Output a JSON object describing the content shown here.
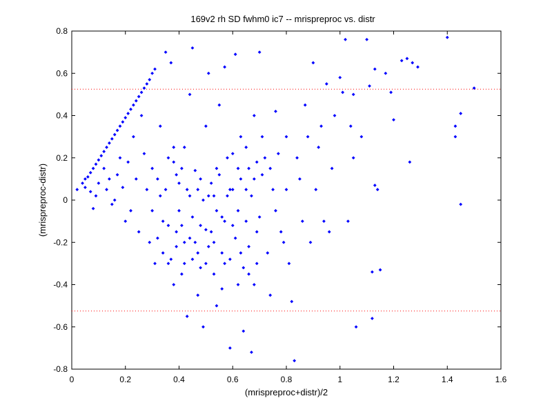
{
  "chart_data": {
    "type": "scatter",
    "title": "169v2 rh SD fwhm0 ic7 -- mrispreproc vs. distr",
    "xlabel": "(mrispreproc+distr)/2",
    "ylabel": "(mrispreproc-distr)",
    "xlim": [
      0,
      1.6
    ],
    "ylim": [
      -0.8,
      0.8
    ],
    "x_ticks": [
      "0",
      "0.2",
      "0.4",
      "0.6",
      "0.8",
      "1",
      "1.2",
      "1.4",
      "1.6"
    ],
    "y_ticks": [
      "-0.8",
      "-0.6",
      "-0.4",
      "-0.2",
      "0",
      "0.2",
      "0.4",
      "0.6",
      "0.8"
    ],
    "grid": false,
    "marker_color": "#0000ff",
    "reference_lines": [
      {
        "y": 0.525,
        "color": "#ff0000",
        "style": "dotted"
      },
      {
        "y": -0.525,
        "color": "#ff0000",
        "style": "dotted"
      }
    ],
    "series": [
      {
        "points": [
          [
            0.02,
            0.05
          ],
          [
            0.04,
            0.08
          ],
          [
            0.05,
            0.1
          ],
          [
            0.06,
            0.11
          ],
          [
            0.07,
            0.13
          ],
          [
            0.08,
            0.15
          ],
          [
            0.09,
            0.17
          ],
          [
            0.1,
            0.19
          ],
          [
            0.11,
            0.21
          ],
          [
            0.12,
            0.23
          ],
          [
            0.13,
            0.25
          ],
          [
            0.14,
            0.27
          ],
          [
            0.15,
            0.29
          ],
          [
            0.16,
            0.31
          ],
          [
            0.17,
            0.33
          ],
          [
            0.18,
            0.35
          ],
          [
            0.19,
            0.37
          ],
          [
            0.2,
            0.39
          ],
          [
            0.21,
            0.41
          ],
          [
            0.22,
            0.43
          ],
          [
            0.23,
            0.45
          ],
          [
            0.24,
            0.47
          ],
          [
            0.25,
            0.49
          ],
          [
            0.26,
            0.51
          ],
          [
            0.27,
            0.53
          ],
          [
            0.28,
            0.55
          ],
          [
            0.29,
            0.57
          ],
          [
            0.3,
            0.6
          ],
          [
            0.31,
            0.62
          ],
          [
            0.05,
            0.06
          ],
          [
            0.07,
            0.04
          ],
          [
            0.08,
            -0.04
          ],
          [
            0.09,
            0.02
          ],
          [
            0.1,
            0.08
          ],
          [
            0.12,
            0.15
          ],
          [
            0.13,
            0.05
          ],
          [
            0.14,
            0.1
          ],
          [
            0.15,
            -0.02
          ],
          [
            0.16,
            0.0
          ],
          [
            0.17,
            0.12
          ],
          [
            0.18,
            0.2
          ],
          [
            0.19,
            0.06
          ],
          [
            0.2,
            -0.1
          ],
          [
            0.21,
            0.18
          ],
          [
            0.22,
            -0.05
          ],
          [
            0.23,
            0.3
          ],
          [
            0.24,
            0.1
          ],
          [
            0.25,
            -0.15
          ],
          [
            0.26,
            0.4
          ],
          [
            0.27,
            0.22
          ],
          [
            0.28,
            0.05
          ],
          [
            0.29,
            -0.2
          ],
          [
            0.3,
            0.15
          ],
          [
            0.31,
            -0.3
          ],
          [
            0.32,
            0.1
          ],
          [
            0.33,
            0.35
          ],
          [
            0.34,
            -0.1
          ],
          [
            0.35,
            0.7
          ],
          [
            0.36,
            0.2
          ],
          [
            0.37,
            0.65
          ],
          [
            0.38,
            -0.4
          ],
          [
            0.39,
            0.12
          ],
          [
            0.4,
            -0.05
          ],
          [
            0.41,
            -0.35
          ],
          [
            0.42,
            0.25
          ],
          [
            0.43,
            -0.55
          ],
          [
            0.44,
            0.5
          ],
          [
            0.45,
            0.72
          ],
          [
            0.46,
            -0.2
          ],
          [
            0.47,
            -0.45
          ],
          [
            0.48,
            0.1
          ],
          [
            0.49,
            -0.6
          ],
          [
            0.5,
            0.35
          ],
          [
            0.51,
            0.6
          ],
          [
            0.52,
            -0.15
          ],
          [
            0.53,
            0.02
          ],
          [
            0.54,
            -0.5
          ],
          [
            0.55,
            0.45
          ],
          [
            0.56,
            -0.25
          ],
          [
            0.57,
            0.63
          ],
          [
            0.58,
            0.2
          ],
          [
            0.59,
            -0.7
          ],
          [
            0.6,
            0.05
          ],
          [
            0.61,
            0.69
          ],
          [
            0.62,
            -0.4
          ],
          [
            0.63,
            0.3
          ],
          [
            0.64,
            -0.62
          ],
          [
            0.65,
            -0.1
          ],
          [
            0.66,
            0.15
          ],
          [
            0.67,
            -0.72
          ],
          [
            0.68,
            0.4
          ],
          [
            0.69,
            -0.3
          ],
          [
            0.7,
            0.7
          ],
          [
            0.72,
            0.2
          ],
          [
            0.74,
            -0.45
          ],
          [
            0.75,
            0.05
          ],
          [
            0.76,
            0.42
          ],
          [
            0.78,
            -0.15
          ],
          [
            0.8,
            0.3
          ],
          [
            0.82,
            -0.48
          ],
          [
            0.83,
            -0.76
          ],
          [
            0.85,
            0.1
          ],
          [
            0.87,
            0.45
          ],
          [
            0.89,
            -0.2
          ],
          [
            0.9,
            0.65
          ],
          [
            0.92,
            0.25
          ],
          [
            0.94,
            -0.1
          ],
          [
            0.95,
            0.55
          ],
          [
            0.97,
            0.15
          ],
          [
            1.0,
            0.58
          ],
          [
            1.01,
            0.51
          ],
          [
            1.02,
            0.76
          ],
          [
            1.03,
            -0.1
          ],
          [
            1.04,
            0.35
          ],
          [
            1.05,
            0.2
          ],
          [
            1.06,
            -0.6
          ],
          [
            1.08,
            0.3
          ],
          [
            1.1,
            0.76
          ],
          [
            1.11,
            0.54
          ],
          [
            1.12,
            -0.56
          ],
          [
            1.13,
            0.62
          ],
          [
            1.14,
            0.05
          ],
          [
            1.15,
            -0.33
          ],
          [
            1.17,
            0.6
          ],
          [
            1.19,
            0.51
          ],
          [
            1.2,
            0.38
          ],
          [
            1.23,
            0.66
          ],
          [
            1.25,
            0.67
          ],
          [
            1.27,
            0.65
          ],
          [
            1.29,
            0.63
          ],
          [
            1.26,
            0.18
          ],
          [
            1.4,
            0.77
          ],
          [
            1.43,
            0.35
          ],
          [
            1.43,
            0.3
          ],
          [
            1.45,
            0.41
          ],
          [
            1.45,
            -0.02
          ],
          [
            1.5,
            0.53
          ],
          [
            1.12,
            -0.34
          ],
          [
            1.13,
            0.07
          ],
          [
            0.3,
            -0.05
          ],
          [
            0.32,
            -0.18
          ],
          [
            0.33,
            0.02
          ],
          [
            0.34,
            -0.25
          ],
          [
            0.36,
            -0.12
          ],
          [
            0.37,
            -0.28
          ],
          [
            0.38,
            0.18
          ],
          [
            0.39,
            -0.22
          ],
          [
            0.4,
            0.08
          ],
          [
            0.41,
            -0.12
          ],
          [
            0.42,
            -0.3
          ],
          [
            0.43,
            0.05
          ],
          [
            0.44,
            -0.18
          ],
          [
            0.45,
            -0.08
          ],
          [
            0.46,
            0.14
          ],
          [
            0.47,
            -0.25
          ],
          [
            0.48,
            -0.32
          ],
          [
            0.49,
            0.0
          ],
          [
            0.5,
            -0.14
          ],
          [
            0.51,
            -0.22
          ],
          [
            0.52,
            0.08
          ],
          [
            0.53,
            -0.35
          ],
          [
            0.54,
            -0.05
          ],
          [
            0.55,
            0.12
          ],
          [
            0.56,
            -0.42
          ],
          [
            0.57,
            -0.1
          ],
          [
            0.58,
            0.02
          ],
          [
            0.59,
            -0.28
          ],
          [
            0.6,
            0.22
          ],
          [
            0.61,
            -0.18
          ],
          [
            0.62,
            -0.05
          ],
          [
            0.63,
            0.1
          ],
          [
            0.64,
            -0.32
          ],
          [
            0.65,
            0.25
          ],
          [
            0.66,
            -0.22
          ],
          [
            0.67,
            0.02
          ],
          [
            0.68,
            -0.4
          ],
          [
            0.69,
            0.18
          ],
          [
            0.7,
            -0.08
          ],
          [
            0.71,
            0.12
          ],
          [
            0.35,
            0.05
          ],
          [
            0.36,
            -0.3
          ],
          [
            0.38,
            0.25
          ],
          [
            0.39,
            -0.15
          ],
          [
            0.41,
            0.15
          ],
          [
            0.42,
            -0.2
          ],
          [
            0.44,
            0.02
          ],
          [
            0.45,
            -0.28
          ],
          [
            0.47,
            0.05
          ],
          [
            0.48,
            -0.12
          ],
          [
            0.5,
            -0.3
          ],
          [
            0.51,
            0.02
          ],
          [
            0.53,
            -0.2
          ],
          [
            0.54,
            0.15
          ],
          [
            0.56,
            -0.08
          ],
          [
            0.57,
            -0.3
          ],
          [
            0.59,
            0.05
          ],
          [
            0.6,
            -0.12
          ],
          [
            0.62,
            0.15
          ],
          [
            0.63,
            -0.25
          ],
          [
            0.65,
            0.05
          ],
          [
            0.66,
            -0.35
          ],
          [
            0.68,
            0.1
          ],
          [
            0.69,
            -0.15
          ],
          [
            0.71,
            0.3
          ],
          [
            0.73,
            -0.25
          ],
          [
            0.74,
            0.15
          ],
          [
            0.76,
            -0.05
          ],
          [
            0.77,
            0.22
          ],
          [
            0.79,
            -0.2
          ],
          [
            0.8,
            0.05
          ],
          [
            0.81,
            -0.3
          ],
          [
            0.84,
            0.2
          ],
          [
            0.86,
            -0.1
          ],
          [
            0.88,
            0.3
          ],
          [
            0.91,
            0.05
          ],
          [
            0.93,
            0.35
          ],
          [
            0.96,
            -0.15
          ],
          [
            0.98,
            0.4
          ],
          [
            1.05,
            0.5
          ]
        ]
      }
    ]
  }
}
